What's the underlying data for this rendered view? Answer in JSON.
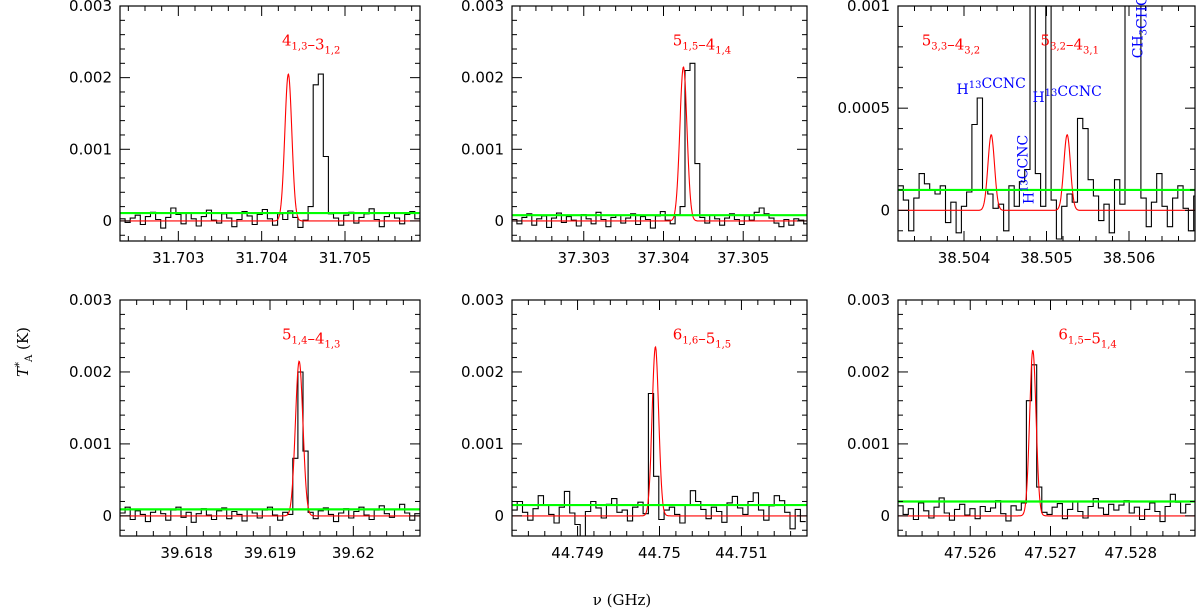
{
  "figure": {
    "ylabel": "T",
    "ylabel_sup": "*",
    "ylabel_sub": "A",
    "ylabel_unit": " (K)",
    "xlabel": "ν (GHz)",
    "colors": {
      "spectrum": "#000000",
      "model": "#ff0000",
      "threshold": "#00ff00",
      "species": "#0000ff",
      "label": "#ff0000"
    }
  },
  "chart_data": [
    {
      "type": "line",
      "title": "4₁,₃–3₁,₂",
      "xlim": [
        31.7023,
        31.7059
      ],
      "ylim": [
        -0.00028,
        0.003
      ],
      "xticks": [
        {
          "value": 31.703,
          "label": "31.703"
        },
        {
          "value": 31.704,
          "label": "31.704"
        },
        {
          "value": 31.705,
          "label": "31.705"
        }
      ],
      "yticks": [
        {
          "value": 0,
          "label": "0"
        },
        {
          "value": 0.001,
          "label": "0.001"
        },
        {
          "value": 0.002,
          "label": "0.002"
        },
        {
          "value": 0.003,
          "label": "0.003"
        }
      ],
      "threshold": 0.00011,
      "gaussian": {
        "center": 31.70432,
        "peak": 0.00205,
        "sigma": 4.2e-05
      },
      "spectrum": {
        "start": 31.7023,
        "step": 6.1e-05,
        "values": [
          3e-05,
          -2e-05,
          4e-05,
          8e-05,
          -5e-05,
          6e-05,
          0.00012,
          2e-05,
          -0.0001,
          5e-05,
          0.00018,
          9e-05,
          -4e-05,
          0.00011,
          3e-05,
          -7e-05,
          6e-05,
          0.00015,
          1e-05,
          -3e-05,
          0.0001,
          4e-05,
          -8e-05,
          2e-05,
          0.00013,
          7e-05,
          -5e-05,
          9e-05,
          0.00016,
          3e-05,
          -6e-05,
          0.0001,
          2e-05,
          0.00014,
          5e-05,
          -9e-05,
          1e-05,
          0.0002,
          0.0019,
          0.00205,
          0.0009,
          0.0001,
          4e-05,
          -6e-05,
          8e-05,
          0.00012,
          -3e-05,
          5e-05,
          0.0001,
          0.00017,
          2e-05,
          -8e-05,
          6e-05,
          0.00011,
          4e-05,
          -4e-05,
          9e-05,
          0.00013,
          3e-05,
          7e-05,
          0.00018,
          0.00025,
          1e-05
        ]
      }
    },
    {
      "type": "line",
      "title": "5₁,₅–4₁,₄",
      "xlim": [
        37.3021,
        37.3058
      ],
      "ylim": [
        -0.00028,
        0.003
      ],
      "xticks": [
        {
          "value": 37.303,
          "label": "37.303"
        },
        {
          "value": 37.304,
          "label": "37.304"
        },
        {
          "value": 37.305,
          "label": "37.305"
        }
      ],
      "yticks": [
        {
          "value": 0,
          "label": "0"
        },
        {
          "value": 0.001,
          "label": "0.001"
        },
        {
          "value": 0.002,
          "label": "0.002"
        },
        {
          "value": 0.003,
          "label": "0.003"
        }
      ],
      "threshold": 8e-05,
      "gaussian": {
        "center": 37.30425,
        "peak": 0.00215,
        "sigma": 4.5e-05
      },
      "spectrum": {
        "start": 37.3021,
        "step": 6.2e-05,
        "values": [
          2e-05,
          -4e-05,
          5e-05,
          0.0001,
          -6e-05,
          3e-05,
          7e-05,
          -9e-05,
          4e-05,
          0.00011,
          -2e-05,
          6e-05,
          1e-05,
          -7e-05,
          9e-05,
          3e-05,
          -4e-05,
          0.00012,
          2e-05,
          -8e-05,
          5e-05,
          8e-05,
          -3e-05,
          4e-05,
          0.0001,
          -5e-05,
          6e-05,
          2e-05,
          -0.0001,
          7e-05,
          0.00013,
          1e-05,
          -4e-05,
          9e-05,
          0.0002,
          0.0021,
          0.0022,
          0.0008,
          5e-05,
          -3e-05,
          8e-05,
          3e-05,
          -6e-05,
          4e-05,
          0.0001,
          2e-05,
          -5e-05,
          7e-05,
          1e-05,
          0.00012,
          0.00018,
          0.0001,
          4e-05,
          -3e-05,
          -8e-05,
          2e-05,
          -6e-05,
          3e-05,
          1e-05,
          -4e-05
        ]
      }
    },
    {
      "type": "line",
      "title": "",
      "xlim": [
        38.5032,
        38.5068
      ],
      "ylim": [
        -0.00015,
        0.001
      ],
      "xticks": [
        {
          "value": 38.504,
          "label": "38.504"
        },
        {
          "value": 38.505,
          "label": "38.505"
        },
        {
          "value": 38.506,
          "label": "38.506"
        }
      ],
      "yticks": [
        {
          "value": 0,
          "label": "0"
        },
        {
          "value": 0.0005,
          "label": "0.0005"
        },
        {
          "value": 0.001,
          "label": "0.001"
        }
      ],
      "threshold": 0.0001,
      "gaussians": [
        {
          "center": 38.50433,
          "peak": 0.00037,
          "sigma": 4e-05
        },
        {
          "center": 38.50525,
          "peak": 0.00037,
          "sigma": 4e-05
        }
      ],
      "transition_labels": [
        "5₃,₃–4₃,₂",
        "5₃,₂–4₃,₁"
      ],
      "species_labels": [
        {
          "text": "H¹³CCNC",
          "value": 38.50433,
          "y": 0.00057,
          "rotate": false
        },
        {
          "text": "H¹³CCNC",
          "value": 38.50478,
          "y": 0.0002,
          "rotate": true
        },
        {
          "text": "H¹³CCNC",
          "value": 38.50525,
          "y": 0.00053,
          "rotate": false
        },
        {
          "text": "CH₃CHO",
          "value": 38.5061,
          "y": 0.0009,
          "rotate": true
        }
      ],
      "spectrum": {
        "start": 38.5032,
        "step": 6.4e-05,
        "values": [
          0.00012,
          5e-05,
          -0.0001,
          6e-05,
          0.00018,
          0.00013,
          0.0001,
          8e-05,
          0.00012,
          -6e-05,
          4e-05,
          -0.00011,
          2e-05,
          9e-05,
          0.00042,
          0.00055,
          0.0001,
          8e-05,
          1e-05,
          3e-05,
          -0.0001,
          0.00012,
          2e-05,
          0.00014,
          0.0002,
          0.0013,
          0.00018,
          2e-05,
          0.0013,
          5e-05,
          -0.00014,
          2e-05,
          8e-05,
          4e-05,
          0.00045,
          0.0004,
          0.00015,
          7e-05,
          -5e-05,
          3e-05,
          -0.00011,
          0.00015,
          3e-05,
          0.0013,
          0.0013,
          0.0013,
          6e-05,
          -8e-05,
          4e-05,
          0.00018,
          2e-05,
          -8e-05,
          6e-05,
          0.00012,
          1e-05,
          -0.0001,
          7e-05
        ]
      }
    },
    {
      "type": "line",
      "title": "5₁,₄–4₁,₃",
      "xlim": [
        39.6172,
        39.6208
      ],
      "ylim": [
        -0.00028,
        0.003
      ],
      "xticks": [
        {
          "value": 39.618,
          "label": "39.618"
        },
        {
          "value": 39.619,
          "label": "39.619"
        },
        {
          "value": 39.62,
          "label": "39.62"
        }
      ],
      "yticks": [
        {
          "value": 0,
          "label": "0"
        },
        {
          "value": 0.001,
          "label": "0.001"
        },
        {
          "value": 0.002,
          "label": "0.002"
        },
        {
          "value": 0.003,
          "label": "0.003"
        }
      ],
      "threshold": 9e-05,
      "gaussian": {
        "center": 39.61935,
        "peak": 0.00215,
        "sigma": 4.5e-05
      },
      "spectrum": {
        "start": 39.6172,
        "step": 6.1e-05,
        "values": [
          4e-05,
          0.00012,
          -5e-05,
          7e-05,
          2e-05,
          -8e-05,
          5e-05,
          9e-05,
          3e-05,
          -6e-05,
          8e-05,
          0.00012,
          -2e-05,
          5e-05,
          -9e-05,
          3e-05,
          0.0001,
          1e-05,
          -5e-05,
          7e-05,
          0.00011,
          -4e-05,
          6e-05,
          2e-05,
          -7e-05,
          9e-05,
          4e-05,
          -3e-05,
          8e-05,
          0.00012,
          1e-05,
          -6e-05,
          5e-05,
          2e-05,
          0.0008,
          0.002,
          0.0009,
          5e-05,
          -4e-05,
          7e-05,
          0.00011,
          2e-05,
          -8e-05,
          4e-05,
          0.0001,
          -3e-05,
          6e-05,
          0.00012,
          1e-05,
          -5e-05,
          8e-05,
          0.00014,
          3e-05,
          -2e-05,
          9e-05,
          0.00016,
          4e-05,
          -6e-05,
          3e-05
        ]
      }
    },
    {
      "type": "line",
      "title": "6₁,₆–5₁,₅",
      "xlim": [
        44.7482,
        44.7518
      ],
      "ylim": [
        -0.00028,
        0.003
      ],
      "xticks": [
        {
          "value": 44.749,
          "label": "44.749"
        },
        {
          "value": 44.75,
          "label": "44.75"
        },
        {
          "value": 44.751,
          "label": "44.751"
        }
      ],
      "yticks": [
        {
          "value": 0,
          "label": "0"
        },
        {
          "value": 0.001,
          "label": "0.001"
        },
        {
          "value": 0.002,
          "label": "0.002"
        },
        {
          "value": 0.003,
          "label": "0.003"
        }
      ],
      "threshold": 0.00015,
      "gaussian": {
        "center": 44.74995,
        "peak": 0.00235,
        "sigma": 4e-05
      },
      "spectrum": {
        "start": 44.7482,
        "step": 6.4e-05,
        "values": [
          8e-05,
          0.0002,
          5e-05,
          -6e-05,
          0.0001,
          0.00028,
          0.00015,
          2e-05,
          -0.0001,
          0.00012,
          0.00034,
          4e-05,
          -0.00012,
          -0.00028,
          6e-05,
          0.0002,
          0.00011,
          -3e-05,
          0.00016,
          0.00024,
          5e-05,
          8e-05,
          -7e-05,
          0.00012,
          0.00019,
          3e-05,
          0.0017,
          0.00055,
          -5e-05,
          8e-05,
          0.00012,
          2e-05,
          -0.0001,
          0.00015,
          0.00035,
          0.0002,
          9e-05,
          -4e-05,
          0.00012,
          6e-05,
          -9e-05,
          0.00018,
          0.00027,
          0.00011,
          2e-05,
          0.0002,
          0.00032,
          8e-05,
          -6e-05,
          0.00014,
          0.00028,
          0.00021,
          5e-05,
          -0.00018,
          9e-05,
          -8e-05
        ]
      }
    },
    {
      "type": "line",
      "title": "6₁,₅–5₁,₄",
      "xlim": [
        47.5251,
        47.5288
      ],
      "ylim": [
        -0.00028,
        0.003
      ],
      "xticks": [
        {
          "value": 47.526,
          "label": "47.526"
        },
        {
          "value": 47.527,
          "label": "47.527"
        },
        {
          "value": 47.528,
          "label": "47.528"
        }
      ],
      "yticks": [
        {
          "value": 0,
          "label": "0"
        },
        {
          "value": 0.001,
          "label": "0.001"
        },
        {
          "value": 0.002,
          "label": "0.002"
        },
        {
          "value": 0.003,
          "label": "0.003"
        }
      ],
      "threshold": 0.0002,
      "gaussian": {
        "center": 47.52678,
        "peak": 0.0023,
        "sigma": 4e-05
      },
      "spectrum": {
        "start": 47.5251,
        "step": 6.4e-05,
        "values": [
          0.00014,
          2e-05,
          0.0001,
          -5e-05,
          0.00018,
          7e-05,
          -3e-05,
          0.00012,
          0.00025,
          4e-05,
          -6e-05,
          9e-05,
          0.00016,
          1e-05,
          0.0001,
          -4e-05,
          0.00013,
          6e-05,
          0.00011,
          0.00021,
          3e-05,
          -7e-05,
          0.00014,
          8e-05,
          0.00018,
          0.0016,
          0.0021,
          0.0004,
          5e-05,
          2e-05,
          0.00012,
          0.00017,
          -4e-05,
          9e-05,
          0.0002,
          6e-05,
          -3e-05,
          0.00013,
          0.00024,
          0.00011,
          2e-05,
          0.00016,
          8e-05,
          0.00015,
          0.00021,
          4e-05,
          0.00012,
          -5e-05,
          9e-05,
          0.00018,
          6e-05,
          -8e-05,
          0.00013,
          0.0003,
          0.00019,
          4e-05,
          0.00016
        ]
      }
    }
  ]
}
